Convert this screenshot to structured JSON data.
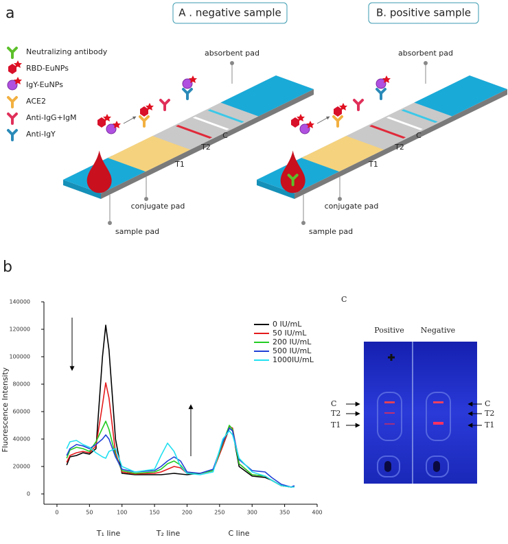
{
  "panel_a": {
    "label": "a",
    "headers": [
      "A . negative sample",
      "B. positive sample"
    ],
    "legend": [
      "Neutralizing antibody",
      "RBD-EuNPs",
      "IgY-EuNPs",
      "ACE2",
      "Anti-IgG+IgM",
      "Anti-IgY"
    ],
    "strips": [
      {
        "absorbent": "absorbent pad",
        "c": "C",
        "t2": "T2",
        "t1": "T1",
        "conjugate": "conjugate pad",
        "sample": "sample pad"
      },
      {
        "absorbent": "absorbent pad",
        "c": "C",
        "t2": "T2",
        "t1": "T1",
        "conjugate": "conjugate pad",
        "sample": "sample pad"
      }
    ]
  },
  "chart_data": {
    "type": "line",
    "label": "b",
    "y_label": "Fluorescence Intensity",
    "region_labels": [
      "T₁ line",
      "T₂ line",
      "C line"
    ],
    "x": [
      15,
      20,
      30,
      40,
      50,
      60,
      70,
      75,
      80,
      90,
      100,
      120,
      150,
      160,
      170,
      180,
      190,
      200,
      220,
      240,
      255,
      265,
      270,
      280,
      300,
      320,
      330,
      345,
      360,
      365
    ],
    "series": [
      {
        "name": "0 IU/mL",
        "color": "#000000",
        "values": [
          21000,
          27000,
          28000,
          30000,
          29000,
          33000,
          100000,
          123000,
          105000,
          40000,
          15000,
          14000,
          14000,
          14000,
          14500,
          15000,
          14500,
          14000,
          15000,
          17000,
          35000,
          48000,
          46000,
          20000,
          13000,
          12000,
          10000,
          6000,
          5000,
          5500
        ]
      },
      {
        "name": "50 IU/mL",
        "color": "#e41a1c",
        "values": [
          23000,
          28000,
          30000,
          31000,
          30000,
          35000,
          65000,
          81000,
          70000,
          30000,
          16000,
          14500,
          15000,
          16000,
          18000,
          20000,
          19000,
          15000,
          15000,
          17000,
          35000,
          49000,
          48000,
          22000,
          14000,
          13000,
          10000,
          6000,
          5000,
          5500
        ]
      },
      {
        "name": "200 IU/mL",
        "color": "#22cc22",
        "values": [
          26000,
          32000,
          34000,
          33000,
          31000,
          38000,
          48000,
          53000,
          47000,
          28000,
          17000,
          15000,
          16000,
          18000,
          22000,
          24000,
          21000,
          15000,
          15000,
          17000,
          37000,
          50000,
          47000,
          22000,
          14000,
          13000,
          10000,
          6000,
          5000,
          5500
        ]
      },
      {
        "name": "500 IU/mL",
        "color": "#1f3fd6",
        "values": [
          28000,
          33000,
          36000,
          35000,
          33000,
          36000,
          40000,
          43000,
          40000,
          27000,
          18000,
          16000,
          17000,
          20000,
          24000,
          27000,
          24000,
          16000,
          15000,
          18000,
          38000,
          48000,
          46000,
          25000,
          17000,
          16000,
          12000,
          7000,
          5000,
          6000
        ]
      },
      {
        "name": "1000IU/mL",
        "color": "#22e0f0",
        "values": [
          33000,
          38000,
          39000,
          36000,
          34000,
          30000,
          27000,
          26000,
          31000,
          33000,
          20000,
          16000,
          18000,
          28000,
          37000,
          31000,
          20000,
          15000,
          14000,
          16000,
          40000,
          46000,
          43000,
          26000,
          16000,
          13000,
          10000,
          6000,
          5000,
          5000
        ]
      }
    ],
    "xlim": [
      -20,
      400
    ],
    "xticks": [
      0,
      50,
      100,
      150,
      200,
      250,
      300,
      350,
      400
    ],
    "ylim": [
      -7500,
      140000
    ],
    "yticks": [
      0,
      20000,
      40000,
      60000,
      80000,
      100000,
      120000,
      140000
    ]
  },
  "panel_c": {
    "label": "C",
    "columns": [
      "Positive",
      "Negative"
    ],
    "left_marks": [
      "C",
      "T2",
      "T1"
    ],
    "right_marks": [
      "C",
      "T2",
      "T1"
    ]
  }
}
